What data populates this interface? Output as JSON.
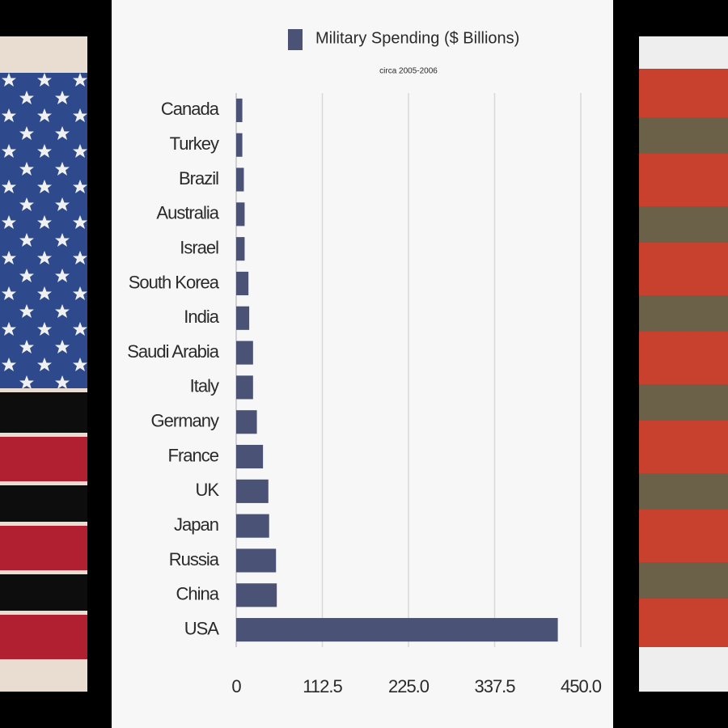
{
  "chart_data": {
    "type": "bar",
    "orientation": "horizontal",
    "title": "Military Spending ($ Billions)",
    "subtitle": "circa 2005-2006",
    "categories": [
      "Canada",
      "Turkey",
      "Brazil",
      "Australia",
      "Israel",
      "South Korea",
      "India",
      "Saudi Arabia",
      "Italy",
      "Germany",
      "France",
      "UK",
      "Japan",
      "Russia",
      "China",
      "USA"
    ],
    "series": [
      {
        "name": "Military Spending ($ Billions)",
        "color": "#4a5275",
        "values": [
          8,
          8,
          10,
          11,
          11,
          16,
          17,
          22,
          22,
          27,
          35,
          42,
          43,
          52,
          53,
          420
        ]
      }
    ],
    "xlim": [
      0,
      450
    ],
    "xticks": [
      0,
      112.5,
      {
        "value": 225,
        "label": "225.0"
      },
      337.5,
      {
        "value": 450,
        "label": "450.0"
      }
    ],
    "grid": true
  }
}
